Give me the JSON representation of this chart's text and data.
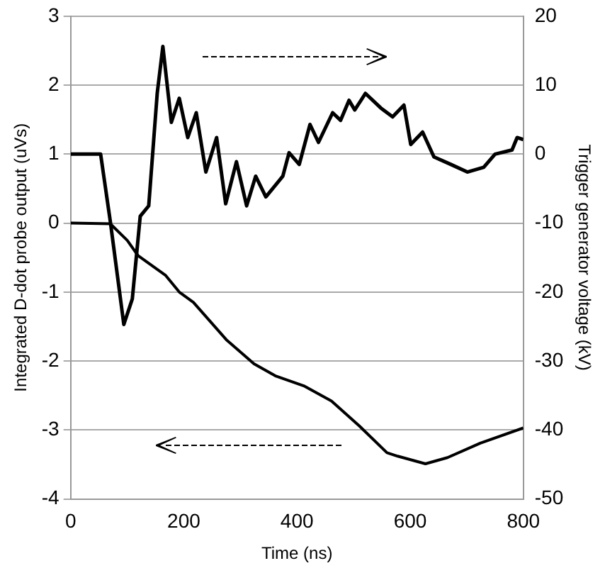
{
  "chart_data": {
    "type": "line",
    "xlabel": "Time (ns)",
    "ylabel": "Integrated D-dot probe output (uVs)",
    "y2label": "Trigger generator voltage (kV)",
    "xlim": [
      0,
      800
    ],
    "xticks": [
      0,
      200,
      400,
      600,
      800
    ],
    "ylim": [
      -4,
      3
    ],
    "yticks": [
      -4,
      -3,
      -2,
      -1,
      0,
      1,
      2,
      3
    ],
    "y2lim": [
      -50,
      20
    ],
    "y2ticks": [
      -50,
      -40,
      -30,
      -20,
      -10,
      0,
      10,
      20
    ],
    "grid": "y",
    "legend": false,
    "marker": "none",
    "line_style": "solid",
    "series": [
      {
        "color": "#000000",
        "x": [
          0,
          70,
          100,
          119,
          168,
          192,
          217,
          275,
          324,
          363,
          412,
          461,
          510,
          559,
          578,
          627,
          666,
          724,
          800
        ],
        "values": [
          0,
          -0.01,
          -0.25,
          -0.47,
          -0.76,
          -1.0,
          -1.15,
          -1.69,
          -2.04,
          -2.22,
          -2.36,
          -2.58,
          -2.94,
          -3.33,
          -3.38,
          -3.49,
          -3.4,
          -3.19,
          -2.97
        ]
      },
      {
        "color": "#000000",
        "axis": "y2",
        "x": [
          0,
          53,
          70,
          94,
          109,
          123,
          138,
          153,
          163,
          178,
          192,
          207,
          222,
          239,
          258,
          274,
          293,
          311,
          327,
          345,
          375,
          386,
          404,
          423,
          438,
          463,
          477,
          492,
          502,
          521,
          548,
          569,
          589,
          601,
          622,
          642,
          672,
          701,
          730,
          750,
          780,
          789,
          800
        ],
        "values": [
          0,
          0,
          -9.7,
          -24.7,
          -21,
          -9,
          -7.5,
          8.8,
          15.6,
          4.6,
          8.1,
          2.4,
          6,
          -2.6,
          2.4,
          -7.2,
          -1.1,
          -7.5,
          -3.2,
          -6.2,
          -3.2,
          0.2,
          -1.5,
          4.3,
          1.7,
          6,
          4.9,
          7.8,
          6.4,
          8.8,
          6.7,
          5.4,
          7.1,
          1.4,
          3.2,
          -0.4,
          -1.5,
          -2.6,
          -1.9,
          0,
          0.6,
          2.4,
          2.1
        ]
      }
    ]
  }
}
